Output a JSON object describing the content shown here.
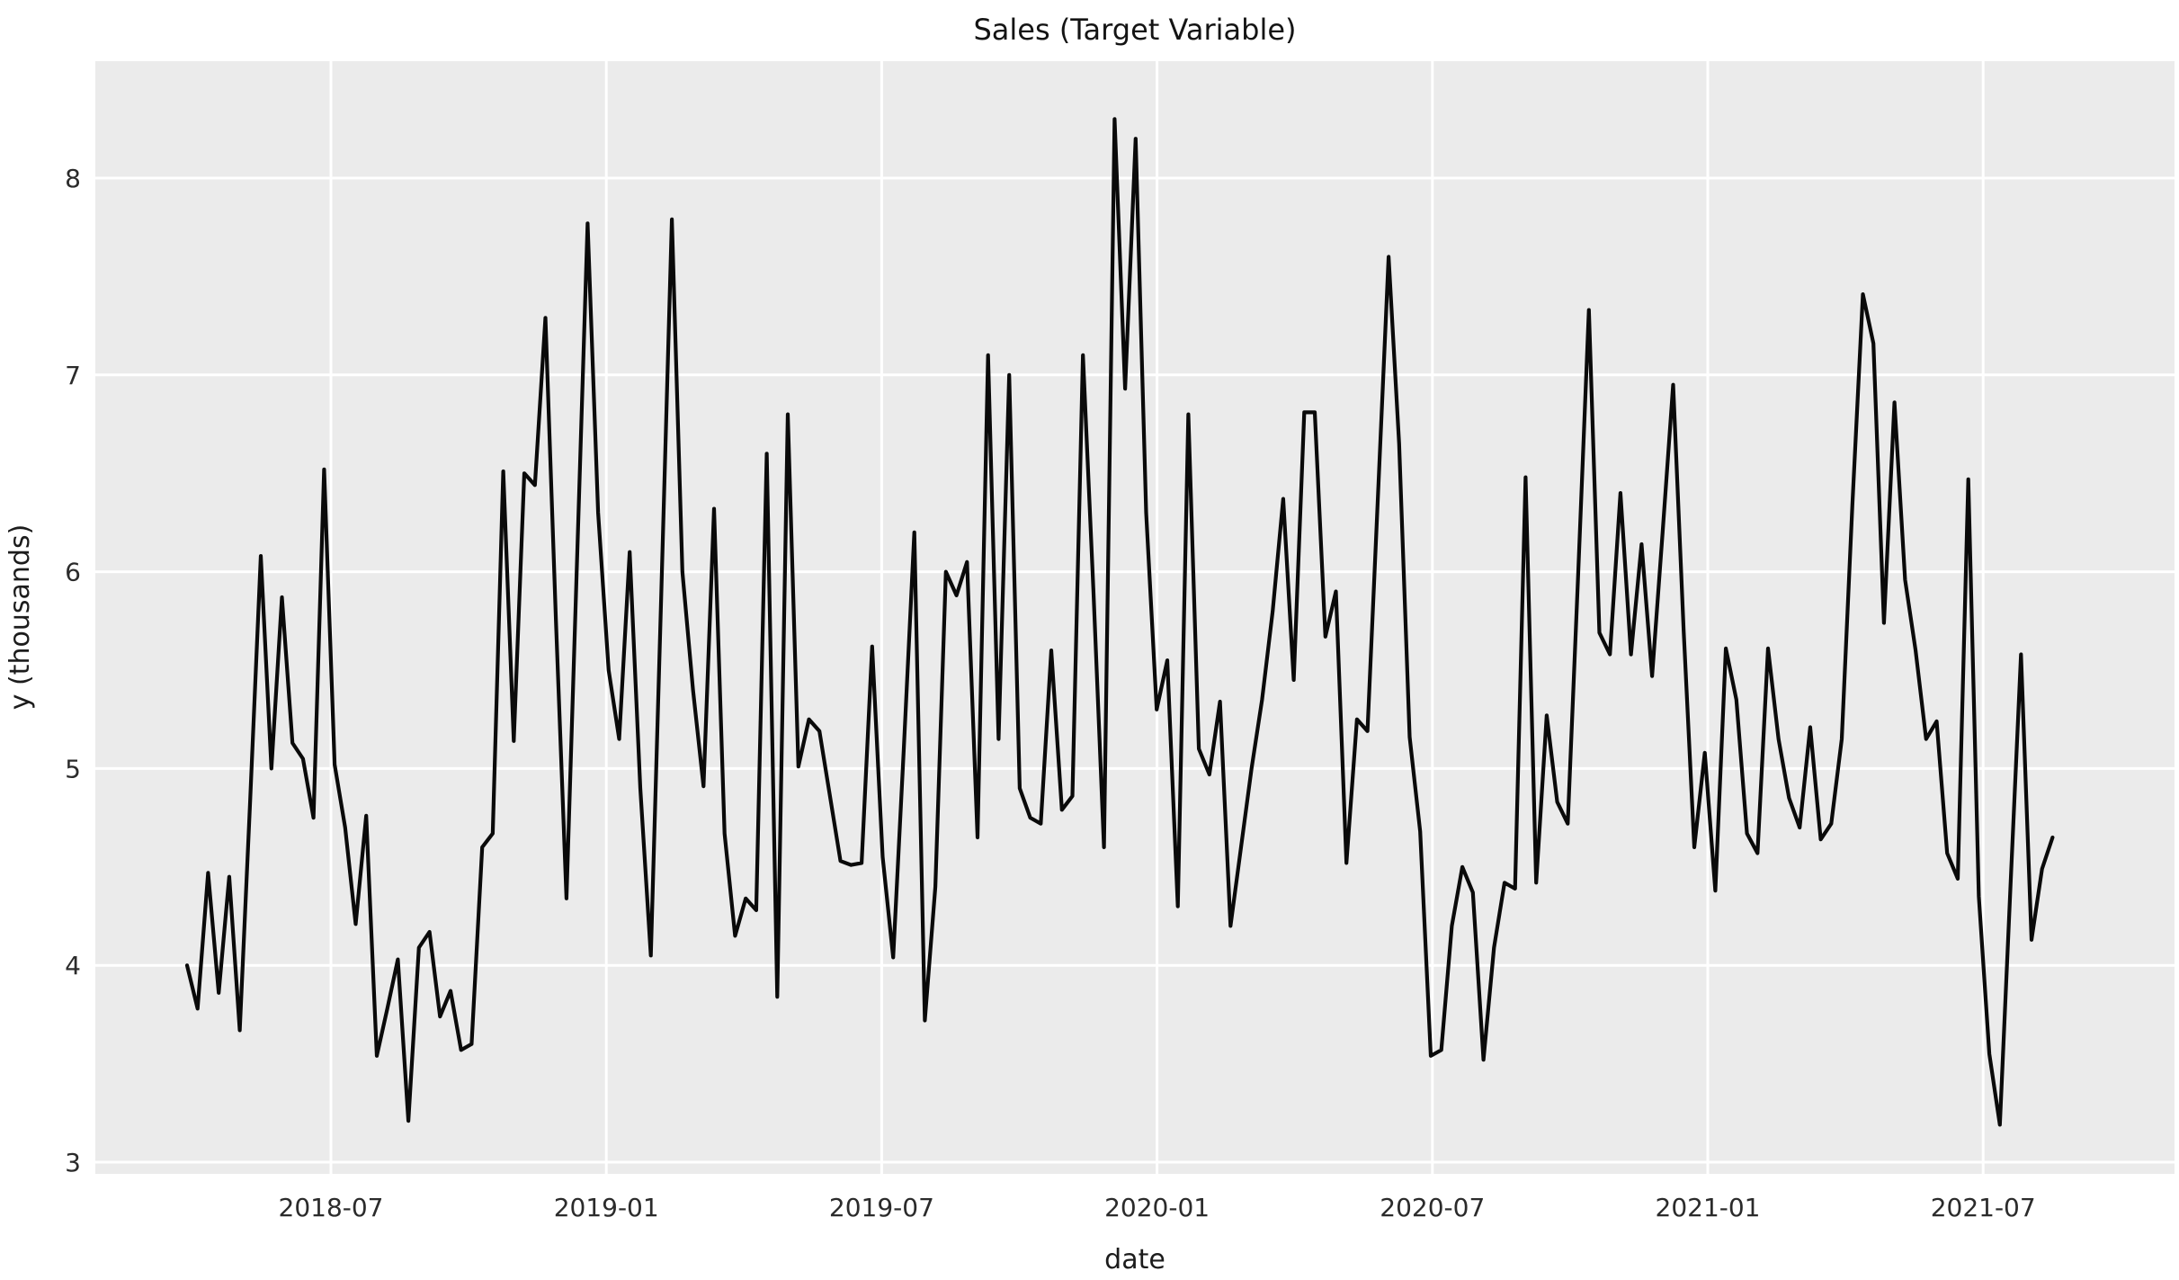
{
  "title": "Sales (Target Variable)",
  "chart_data": {
    "type": "line",
    "title": "Sales (Target Variable)",
    "xlabel": "date",
    "ylabel": "y (thousands)",
    "x_tick_labels": [
      "2018-07",
      "2019-01",
      "2019-07",
      "2020-01",
      "2020-07",
      "2021-01",
      "2021-07"
    ],
    "y_tick_labels": [
      "3",
      "4",
      "5",
      "6",
      "7",
      "8"
    ],
    "y_tick_values": [
      3,
      4,
      5,
      6,
      7,
      8
    ],
    "ylim": [
      2.94,
      8.59
    ],
    "grid": true,
    "grid_color": "#ffffff",
    "legend": false,
    "plot_background": "#ebebeb",
    "figure_background": "#ffffff",
    "line_color": "#0a0a0a",
    "series": [
      {
        "name": "y",
        "start_date": "2018-04-01",
        "frequency_days": 7,
        "values": [
          4.0,
          3.78,
          4.47,
          3.86,
          4.45,
          3.67,
          4.85,
          6.08,
          5.0,
          5.87,
          5.13,
          5.05,
          4.75,
          6.52,
          5.02,
          4.7,
          4.21,
          4.76,
          3.54,
          3.78,
          4.03,
          3.21,
          4.09,
          4.17,
          3.74,
          3.87,
          3.57,
          3.6,
          4.6,
          4.67,
          6.51,
          5.14,
          6.5,
          6.44,
          7.29,
          5.75,
          4.34,
          6.05,
          7.77,
          6.3,
          5.5,
          5.15,
          6.1,
          4.9,
          4.05,
          5.9,
          7.79,
          6.0,
          5.4,
          4.91,
          6.32,
          4.67,
          4.15,
          4.34,
          4.28,
          6.6,
          3.84,
          6.8,
          5.01,
          5.25,
          5.19,
          4.86,
          4.53,
          4.51,
          4.52,
          5.62,
          4.55,
          4.04,
          5.1,
          6.2,
          3.72,
          4.4,
          6.0,
          5.88,
          6.05,
          4.65,
          7.1,
          5.15,
          7.0,
          4.9,
          4.75,
          4.72,
          5.6,
          4.79,
          4.86,
          7.1,
          5.9,
          4.6,
          8.3,
          6.93,
          8.2,
          6.3,
          5.3,
          5.55,
          4.3,
          6.8,
          5.1,
          4.97,
          5.34,
          4.2,
          4.6,
          5.0,
          5.35,
          5.8,
          6.37,
          5.45,
          6.81,
          6.81,
          5.67,
          5.9,
          4.52,
          5.25,
          5.19,
          6.4,
          7.6,
          6.65,
          5.16,
          4.68,
          3.54,
          3.57,
          4.2,
          4.5,
          4.37,
          3.52,
          4.09,
          4.42,
          4.39,
          6.48,
          4.42,
          5.27,
          4.83,
          4.72,
          6.0,
          7.33,
          5.69,
          5.58,
          6.4,
          5.58,
          6.14,
          5.47,
          6.2,
          6.95,
          5.7,
          4.6,
          5.08,
          4.38,
          5.61,
          5.35,
          4.67,
          4.57,
          5.61,
          5.15,
          4.85,
          4.7,
          5.21,
          4.64,
          4.72,
          5.15,
          6.34,
          7.41,
          7.16,
          5.74,
          6.86,
          5.96,
          5.6,
          5.15,
          5.24,
          4.57,
          4.44,
          6.47,
          4.35,
          3.55,
          3.19,
          4.4,
          5.58,
          4.13,
          4.49,
          4.65
        ]
      }
    ]
  }
}
